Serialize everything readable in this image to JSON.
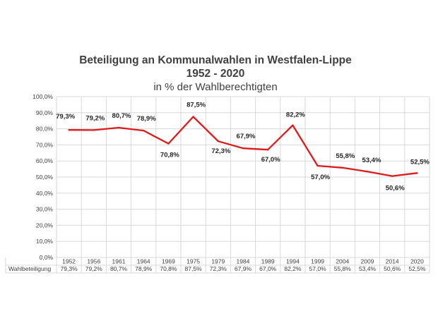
{
  "chart_data": {
    "type": "line",
    "title": "Beteiligung an Kommunalwahlen in Westfalen-Lippe",
    "subtitle": "1952 - 2020",
    "subtitle2": "in % der Wahlberechtigten",
    "categories": [
      "1952",
      "1956",
      "1961",
      "1964",
      "1969",
      "1975",
      "1979",
      "1984",
      "1989",
      "1994",
      "1999",
      "2004",
      "2009",
      "2014",
      "2020"
    ],
    "series": [
      {
        "name": "Wahlbeteiligung",
        "values": [
          79.3,
          79.2,
          80.7,
          78.9,
          70.8,
          87.5,
          72.3,
          67.9,
          67.0,
          82.2,
          57.0,
          55.8,
          53.4,
          50.6,
          52.5
        ],
        "labels": [
          "79,3%",
          "79,2%",
          "80,7%",
          "78,9%",
          "70,8%",
          "87,5%",
          "72,3%",
          "67,9%",
          "67,0%",
          "82,2%",
          "57,0%",
          "55,8%",
          "53,4%",
          "50,6%",
          "52,5%"
        ],
        "table_labels": [
          "79,3%",
          "79,2%",
          "80,7%",
          "78,9%",
          "70,8%",
          "87,5%",
          "72,3%",
          "67,9%",
          "67,0%",
          "82,2%",
          "57,0%",
          "55,8%",
          "53,4%",
          "50,6%",
          "52,5%"
        ],
        "color": "#e0191b"
      }
    ],
    "ylim": [
      0,
      100
    ],
    "yticks": [
      "0,0%",
      "10,0%",
      "20,0%",
      "30,0%",
      "40,0%",
      "50,0%",
      "60,0%",
      "70,0%",
      "80,0%",
      "90,0%",
      "100,0%"
    ],
    "grid": true,
    "legend": "table-below"
  }
}
